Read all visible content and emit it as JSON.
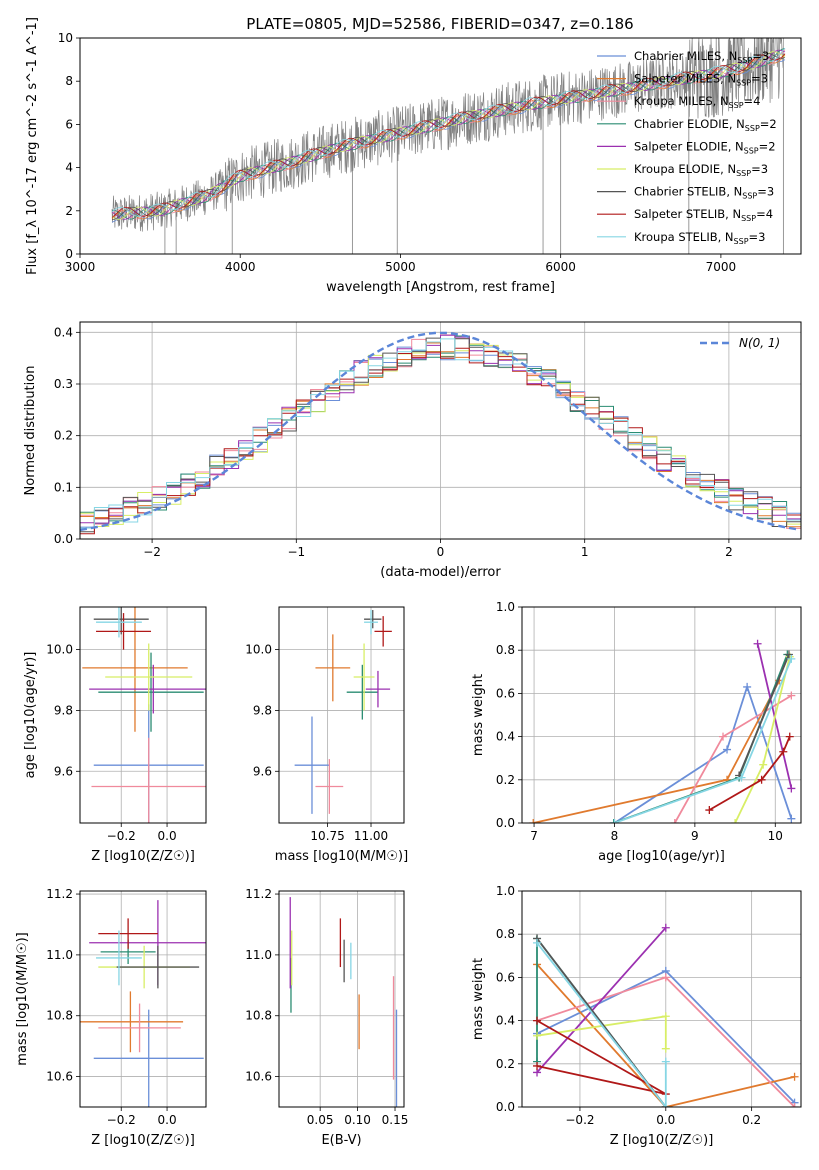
{
  "figure_title": "PLATE=0805, MJD=52586, FIBERID=0347, z=0.186",
  "palette": [
    "#6b8fd8",
    "#e07a2e",
    "#f08a9c",
    "#2a8c72",
    "#9b30b0",
    "#d8ee66",
    "#555555",
    "#b01818",
    "#86d6e4"
  ],
  "legend_top": [
    "Chabrier MILES, N$_{SSP}$=3",
    "Salpeter MILES, N$_{SSP}$=3",
    "Kroupa MILES, N$_{SSP}$=4",
    "Chabrier ELODIE, N$_{SSP}$=2",
    "Salpeter ELODIE, N$_{SSP}$=2",
    "Kroupa ELODIE, N$_{SSP}$=3",
    "Chabrier STELIB, N$_{SSP}$=3",
    "Salpeter STELIB, N$_{SSP}$=4",
    "Kroupa STELIB, N$_{SSP}$=3"
  ],
  "legend_hist": "N(0, 1)",
  "chart_data": [
    {
      "id": "spectrum",
      "type": "line",
      "xlabel": "wavelength [Angstrom, rest frame]",
      "ylabel": "Flux [f_λ 10^-17 erg cm^-2 s^-1 A^-1]",
      "xlim": [
        3000,
        7500
      ],
      "ylim": [
        0,
        10
      ],
      "xticks": [
        3000,
        4000,
        5000,
        6000,
        7000
      ],
      "yticks": [
        0,
        2,
        4,
        6,
        8,
        10
      ],
      "observed_color": "#808080",
      "continuum": {
        "x": [
          3200,
          3500,
          3800,
          4000,
          4300,
          4600,
          5000,
          5400,
          5800,
          6200,
          6600,
          7000,
          7200,
          7400
        ],
        "y": [
          1.8,
          2.0,
          2.7,
          3.6,
          4.2,
          4.9,
          5.6,
          6.3,
          6.9,
          7.4,
          7.9,
          8.4,
          8.8,
          9.3
        ]
      }
    },
    {
      "id": "residual_hist",
      "type": "histogram",
      "xlabel": "(data-model)/error",
      "ylabel": "Normed distribution",
      "xlim": [
        -2.5,
        2.5
      ],
      "ylim": [
        0,
        0.42
      ],
      "xticks": [
        -2,
        -1,
        0,
        1,
        2
      ],
      "yticks": [
        0.0,
        0.1,
        0.2,
        0.3,
        0.4
      ],
      "bin_width": 0.1,
      "gaussian": {
        "mu": 0,
        "sigma": 1,
        "color": "#5b86d8"
      }
    },
    {
      "id": "age_vs_Z",
      "type": "errorbar",
      "xlabel": "Z [log10(Z/Z☉)]",
      "ylabel": "age [log10(age/yr)]",
      "xlim": [
        -0.38,
        0.17
      ],
      "ylim": [
        9.43,
        10.14
      ],
      "xticks": [
        -0.2,
        0.0
      ],
      "yticks": [
        9.6,
        9.8,
        10.0
      ],
      "points": [
        {
          "c": 0,
          "x": -0.08,
          "y": 9.62,
          "xe": 0.24,
          "ye": 0.2
        },
        {
          "c": 1,
          "x": -0.14,
          "y": 9.94,
          "xe": 0.23,
          "ye": 0.21
        },
        {
          "c": 2,
          "x": -0.08,
          "y": 9.55,
          "xe": 0.25,
          "ye": 0.16
        },
        {
          "c": 3,
          "x": -0.07,
          "y": 9.86,
          "xe": 0.23,
          "ye": 0.13
        },
        {
          "c": 4,
          "x": -0.06,
          "y": 9.87,
          "xe": 0.28,
          "ye": 0.08
        },
        {
          "c": 5,
          "x": -0.08,
          "y": 9.91,
          "xe": 0.19,
          "ye": 0.11
        },
        {
          "c": 6,
          "x": -0.2,
          "y": 10.1,
          "xe": 0.12,
          "ye": 0.05
        },
        {
          "c": 7,
          "x": -0.19,
          "y": 10.06,
          "xe": 0.12,
          "ye": 0.06
        },
        {
          "c": 8,
          "x": -0.21,
          "y": 10.09,
          "xe": 0.1,
          "ye": 0.05
        }
      ]
    },
    {
      "id": "age_vs_mass",
      "type": "errorbar",
      "xlabel": "mass [log10(M/M☉)]",
      "ylabel": "",
      "xlim": [
        10.47,
        11.19
      ],
      "ylim": [
        9.43,
        10.14
      ],
      "xticks": [
        10.75,
        11.0
      ],
      "yticks": [
        9.6,
        9.8,
        10.0
      ],
      "points": [
        {
          "c": 0,
          "x": 10.66,
          "y": 9.62,
          "xe": 0.1,
          "ye": 0.16
        },
        {
          "c": 1,
          "x": 10.78,
          "y": 9.94,
          "xe": 0.1,
          "ye": 0.11
        },
        {
          "c": 2,
          "x": 10.76,
          "y": 9.55,
          "xe": 0.08,
          "ye": 0.09
        },
        {
          "c": 3,
          "x": 10.95,
          "y": 9.86,
          "xe": 0.09,
          "ye": 0.09
        },
        {
          "c": 4,
          "x": 11.04,
          "y": 9.87,
          "xe": 0.07,
          "ye": 0.06
        },
        {
          "c": 5,
          "x": 10.96,
          "y": 9.91,
          "xe": 0.06,
          "ye": 0.11
        },
        {
          "c": 6,
          "x": 11.01,
          "y": 10.1,
          "xe": 0.05,
          "ye": 0.03
        },
        {
          "c": 7,
          "x": 11.07,
          "y": 10.06,
          "xe": 0.05,
          "ye": 0.05
        },
        {
          "c": 8,
          "x": 11.0,
          "y": 10.09,
          "xe": 0.04,
          "ye": 0.04
        }
      ]
    },
    {
      "id": "weight_vs_age",
      "type": "line",
      "xlabel": "age [log10(age/yr)]",
      "ylabel": "mass weight",
      "xlim": [
        6.85,
        10.32
      ],
      "ylim": [
        0,
        1.0
      ],
      "xticks": [
        7,
        8,
        9,
        10
      ],
      "yticks": [
        0.0,
        0.2,
        0.4,
        0.6,
        0.8,
        1.0
      ],
      "series": [
        {
          "c": 0,
          "x": [
            8.0,
            9.4,
            9.65,
            10.2
          ],
          "y": [
            0.0,
            0.34,
            0.63,
            0.02
          ]
        },
        {
          "c": 1,
          "x": [
            6.99,
            9.4,
            10.05
          ],
          "y": [
            0.0,
            0.2,
            0.66
          ]
        },
        {
          "c": 2,
          "x": [
            8.75,
            9.35,
            10.2
          ],
          "y": [
            0.0,
            0.4,
            0.59
          ]
        },
        {
          "c": 3,
          "x": [
            7.99,
            9.55,
            10.15
          ],
          "y": [
            0.0,
            0.21,
            0.78
          ]
        },
        {
          "c": 4,
          "x": [
            9.78,
            10.2
          ],
          "y": [
            0.83,
            0.16
          ]
        },
        {
          "c": 5,
          "x": [
            9.5,
            9.85,
            10.18
          ],
          "y": [
            0.0,
            0.27,
            0.77
          ]
        },
        {
          "c": 6,
          "x": [
            9.55,
            10.17
          ],
          "y": [
            0.22,
            0.78
          ]
        },
        {
          "c": 7,
          "x": [
            9.18,
            9.83,
            10.1,
            10.18
          ],
          "y": [
            0.06,
            0.2,
            0.33,
            0.4
          ]
        },
        {
          "c": 8,
          "x": [
            8.0,
            9.58,
            10.2
          ],
          "y": [
            0.0,
            0.21,
            0.76
          ]
        }
      ]
    },
    {
      "id": "mass_vs_Z",
      "type": "errorbar",
      "xlabel": "Z [log10(Z/Z☉)]",
      "ylabel": "mass [log10(M/M☉)]",
      "xlim": [
        -0.38,
        0.17
      ],
      "ylim": [
        10.5,
        11.21
      ],
      "xticks": [
        -0.2,
        0.0
      ],
      "yticks": [
        10.6,
        10.8,
        11.0,
        11.2
      ],
      "points": [
        {
          "c": 0,
          "x": -0.08,
          "y": 10.66,
          "xe": 0.24,
          "ye": 0.16
        },
        {
          "c": 1,
          "x": -0.16,
          "y": 10.78,
          "xe": 0.23,
          "ye": 0.1
        },
        {
          "c": 2,
          "x": -0.12,
          "y": 10.76,
          "xe": 0.18,
          "ye": 0.08
        },
        {
          "c": 3,
          "x": -0.17,
          "y": 11.01,
          "xe": 0.12,
          "ye": 0.04
        },
        {
          "c": 4,
          "x": -0.04,
          "y": 11.04,
          "xe": 0.3,
          "ye": 0.14
        },
        {
          "c": 5,
          "x": -0.1,
          "y": 10.96,
          "xe": 0.2,
          "ye": 0.07
        },
        {
          "c": 6,
          "x": -0.04,
          "y": 10.96,
          "xe": 0.18,
          "ye": 0.07
        },
        {
          "c": 7,
          "x": -0.17,
          "y": 11.07,
          "xe": 0.13,
          "ye": 0.05
        },
        {
          "c": 8,
          "x": -0.21,
          "y": 10.99,
          "xe": 0.1,
          "ye": 0.09
        }
      ]
    },
    {
      "id": "mass_vs_EBV",
      "type": "errorbar",
      "xlabel": "E(B-V)",
      "ylabel": "",
      "xlim": [
        -0.005,
        0.162
      ],
      "ylim": [
        10.5,
        11.21
      ],
      "xticks": [
        0.05,
        0.1,
        0.15
      ],
      "yticks": [
        10.6,
        10.8,
        11.0,
        11.2
      ],
      "points": [
        {
          "c": 0,
          "x": 0.152,
          "y": 10.66,
          "xe": 0,
          "ye": 0.16
        },
        {
          "c": 1,
          "x": 0.102,
          "y": 10.78,
          "xe": 0,
          "ye": 0.09
        },
        {
          "c": 2,
          "x": 0.148,
          "y": 10.76,
          "xe": 0,
          "ye": 0.17
        },
        {
          "c": 3,
          "x": 0.011,
          "y": 10.9,
          "xe": 0,
          "ye": 0.09
        },
        {
          "c": 4,
          "x": 0.01,
          "y": 11.04,
          "xe": 0,
          "ye": 0.15
        },
        {
          "c": 5,
          "x": 0.012,
          "y": 10.99,
          "xe": 0,
          "ye": 0.09
        },
        {
          "c": 6,
          "x": 0.082,
          "y": 10.98,
          "xe": 0,
          "ye": 0.07
        },
        {
          "c": 7,
          "x": 0.077,
          "y": 11.04,
          "xe": 0,
          "ye": 0.08
        },
        {
          "c": 8,
          "x": 0.091,
          "y": 10.98,
          "xe": 0,
          "ye": 0.06
        }
      ]
    },
    {
      "id": "weight_vs_Z",
      "type": "line",
      "xlabel": "Z [log10(Z/Z☉)]",
      "ylabel": "mass weight",
      "xlim": [
        -0.335,
        0.315
      ],
      "ylim": [
        0,
        1.0
      ],
      "xticks": [
        -0.2,
        0.0,
        0.2
      ],
      "yticks": [
        0.0,
        0.2,
        0.4,
        0.6,
        0.8,
        1.0
      ],
      "series": [
        {
          "c": 0,
          "x": [
            -0.3,
            0.0,
            0.3
          ],
          "y": [
            0.34,
            0.63,
            0.02
          ]
        },
        {
          "c": 1,
          "x": [
            -0.3,
            0.0,
            0.3
          ],
          "y": [
            0.66,
            0.0,
            0.14
          ]
        },
        {
          "c": 2,
          "x": [
            -0.3,
            0.0,
            0.3
          ],
          "y": [
            0.4,
            0.6,
            0.0
          ]
        },
        {
          "c": 3,
          "x": [
            -0.3,
            -0.3,
            0.0
          ],
          "y": [
            0.21,
            0.78,
            0.0
          ]
        },
        {
          "c": 4,
          "x": [
            -0.3,
            0.0
          ],
          "y": [
            0.16,
            0.83
          ]
        },
        {
          "c": 5,
          "x": [
            -0.3,
            0.0,
            0.0
          ],
          "y": [
            0.33,
            0.42,
            0.27
          ]
        },
        {
          "c": 6,
          "x": [
            -0.3,
            0.0
          ],
          "y": [
            0.78,
            0.0
          ]
        },
        {
          "c": 7,
          "x": [
            -0.3,
            0.0,
            -0.3
          ],
          "y": [
            0.4,
            0.06,
            0.19
          ]
        },
        {
          "c": 8,
          "x": [
            -0.3,
            0.0,
            0.0
          ],
          "y": [
            0.76,
            0.0,
            0.21
          ]
        }
      ]
    }
  ]
}
